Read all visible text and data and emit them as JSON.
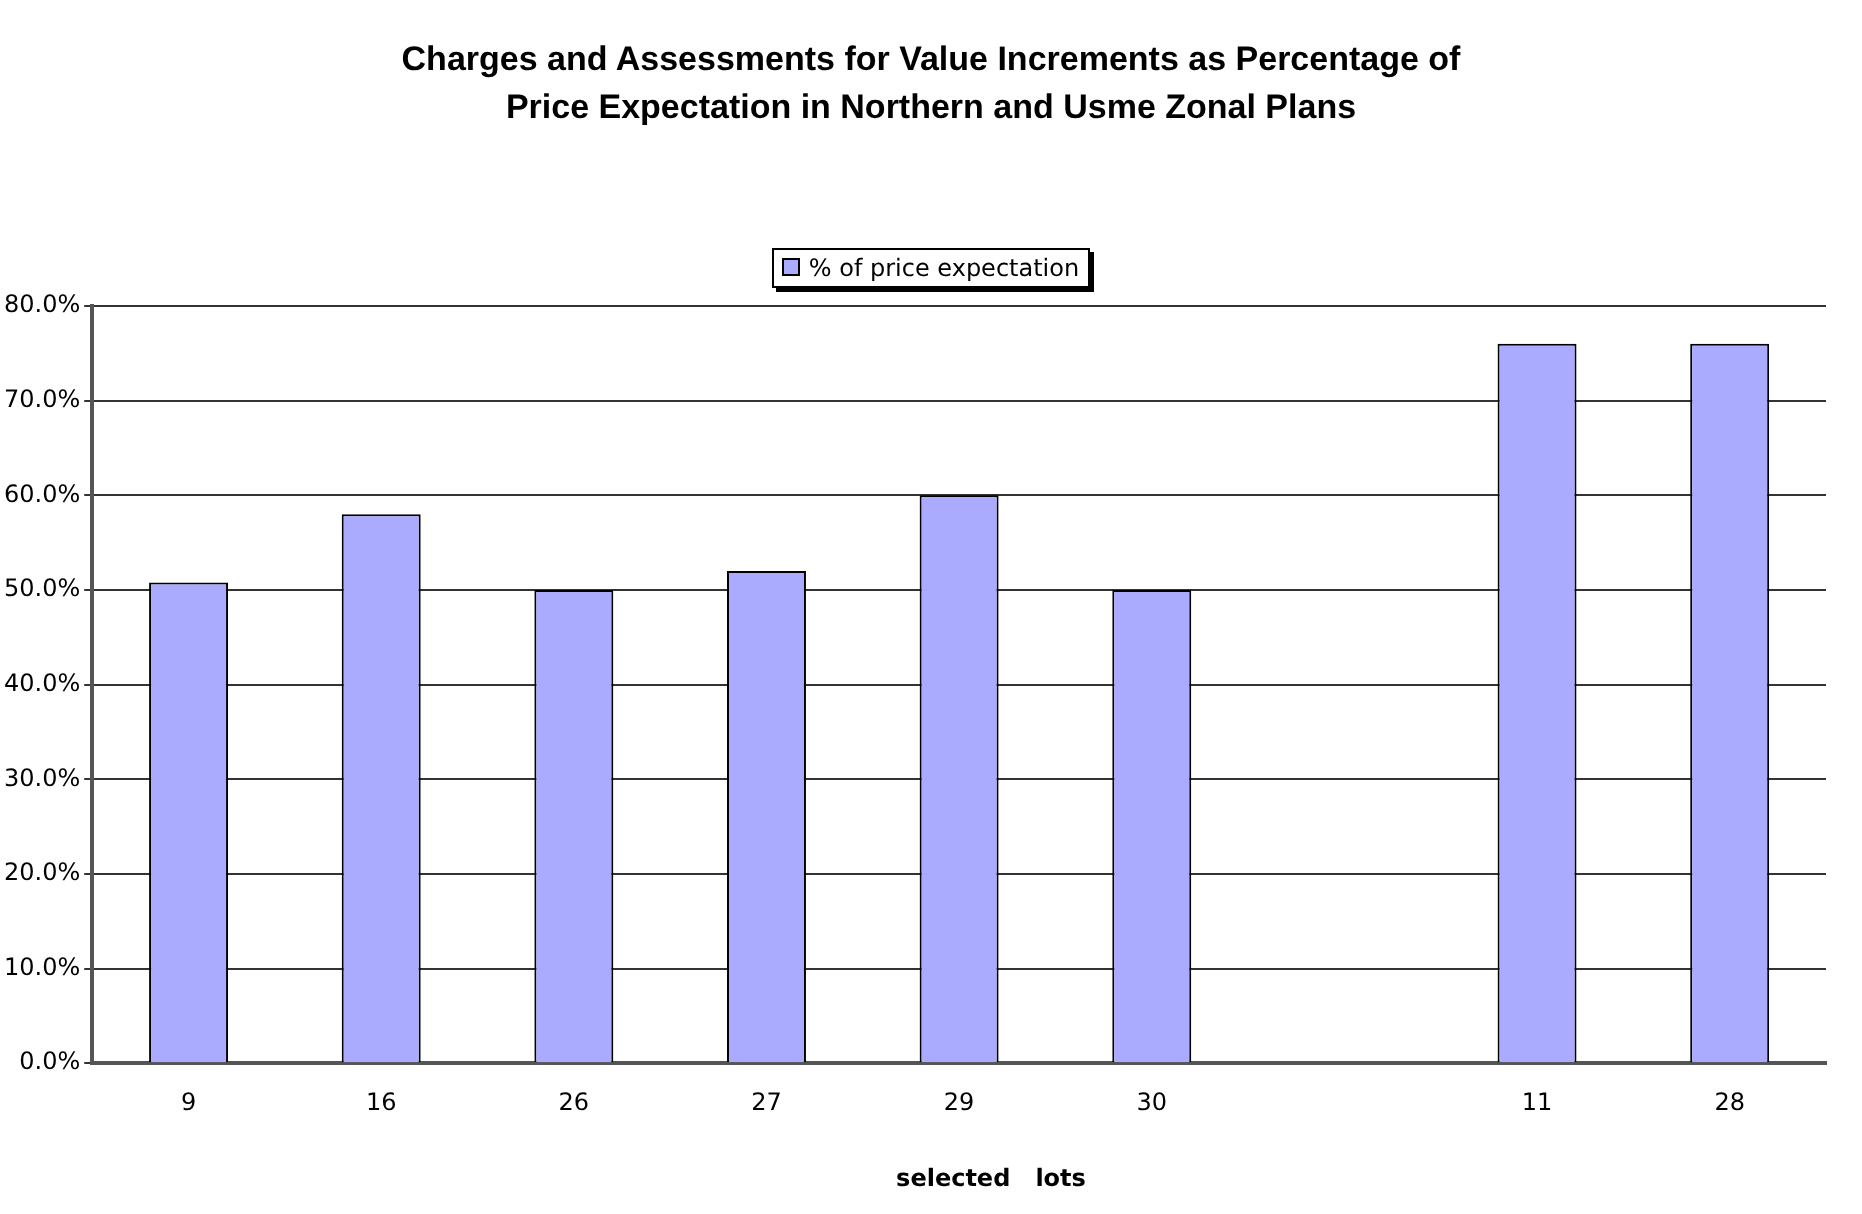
{
  "chart_data": {
    "type": "bar",
    "title": "Charges and Assessments for Value Increments as Percentage of Price Expectation in Northern and Usme Zonal Plans",
    "xlabel": "selected   lots",
    "categories": [
      "9",
      "16",
      "26",
      "27",
      "29",
      "30",
      null,
      "11",
      "28"
    ],
    "series": [
      {
        "name": "% of price expectation",
        "color": "#aaaaff",
        "values": [
          50.8,
          58,
          50,
          52,
          60,
          50,
          null,
          76,
          76
        ]
      }
    ],
    "ylim": [
      0,
      80
    ],
    "yticks": [
      {
        "value": 0,
        "label": "0.0%"
      },
      {
        "value": 10,
        "label": "10.0%"
      },
      {
        "value": 20,
        "label": "20.0%"
      },
      {
        "value": 30,
        "label": "30.0%"
      },
      {
        "value": 40,
        "label": "40.0%"
      },
      {
        "value": 50,
        "label": "50.0%"
      },
      {
        "value": 60,
        "label": "60.0%"
      },
      {
        "value": 70,
        "label": "70.0%"
      },
      {
        "value": 80,
        "label": "80.0%"
      }
    ],
    "grid": "y",
    "legend": "top"
  }
}
